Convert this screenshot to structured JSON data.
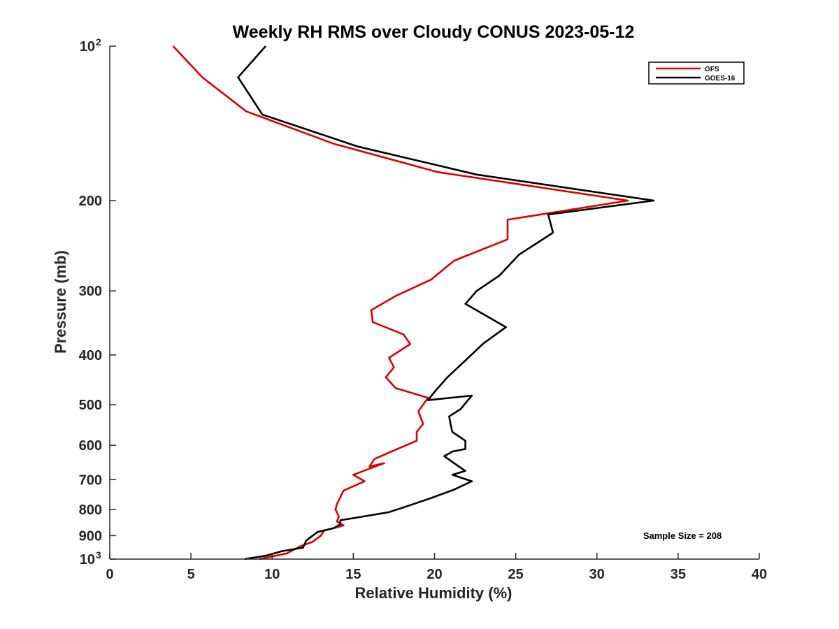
{
  "chart_data": {
    "type": "line",
    "title": "Weekly RH RMS over Cloudy CONUS 2023-05-12",
    "xlabel": "Relative Humidity (%)",
    "ylabel": "Pressure (mb)",
    "xlim": [
      0,
      40
    ],
    "ylim": [
      100,
      1000
    ],
    "yscale": "log",
    "y_reversed": true,
    "xticks": [
      0,
      5,
      10,
      15,
      20,
      25,
      30,
      35,
      40
    ],
    "xtick_labels": [
      "0",
      "5",
      "10",
      "15",
      "20",
      "25",
      "30",
      "35",
      "40"
    ],
    "yticks": [
      {
        "value": 100,
        "base": "10",
        "exp": "2"
      },
      {
        "value": 200,
        "base": "200",
        "exp": ""
      },
      {
        "value": 300,
        "base": "300",
        "exp": ""
      },
      {
        "value": 400,
        "base": "400",
        "exp": ""
      },
      {
        "value": 500,
        "base": "500",
        "exp": ""
      },
      {
        "value": 600,
        "base": "600",
        "exp": ""
      },
      {
        "value": 700,
        "base": "700",
        "exp": ""
      },
      {
        "value": 800,
        "base": "800",
        "exp": ""
      },
      {
        "value": 900,
        "base": "900",
        "exp": ""
      },
      {
        "value": 1000,
        "base": "10",
        "exp": "3"
      }
    ],
    "grid": false,
    "legend_position": "top-right",
    "annotation": "Sample Size = 208",
    "series": [
      {
        "name": "GFS",
        "color": "#dd0000",
        "x": [
          3.9,
          5.7,
          8.4,
          13.8,
          20.2,
          31.9,
          24.5,
          24.5,
          21.2,
          19.8,
          17.6,
          16.1,
          16.2,
          18.1,
          18.5,
          17.2,
          17.5,
          17.0,
          17.6,
          19.6,
          19.0,
          19.3,
          18.9,
          18.9,
          17.6,
          16.3,
          16.0,
          16.9,
          15.0,
          15.7,
          14.4,
          14.0,
          13.9,
          14.1,
          14.0,
          14.4,
          13.2,
          13.0,
          12.5,
          11.7,
          10.9,
          9.2
        ],
        "y": [
          100,
          115,
          134,
          155,
          176,
          200,
          218,
          238,
          262,
          285,
          307,
          327,
          345,
          365,
          381,
          405,
          423,
          442,
          464,
          485,
          515,
          545,
          565,
          588,
          612,
          638,
          660,
          650,
          685,
          705,
          735,
          780,
          800,
          825,
          845,
          860,
          880,
          900,
          925,
          945,
          975,
          1000
        ]
      },
      {
        "name": "GOES-16",
        "color": "#000000",
        "x": [
          9.6,
          7.9,
          9.4,
          15.3,
          22.6,
          33.5,
          27.0,
          27.3,
          25.2,
          24.0,
          22.6,
          21.9,
          24.4,
          23.0,
          21.9,
          20.8,
          20.0,
          19.6,
          22.3,
          21.6,
          20.9,
          21.0,
          21.1,
          21.9,
          21.9,
          21.1,
          20.6,
          21.2,
          21.9,
          21.1,
          22.3,
          21.2,
          19.8,
          18.5,
          17.2,
          15.2,
          14.2,
          14.2,
          13.8,
          12.8,
          12.4,
          12.1,
          11.9,
          10.6,
          9.6,
          8.3
        ],
        "y": [
          100,
          115,
          136,
          157,
          178,
          200,
          213,
          231,
          255,
          280,
          300,
          318,
          353,
          380,
          410,
          442,
          472,
          490,
          480,
          510,
          527,
          548,
          565,
          588,
          610,
          617,
          630,
          650,
          673,
          685,
          705,
          732,
          760,
          785,
          810,
          830,
          840,
          855,
          870,
          885,
          905,
          920,
          950,
          965,
          985,
          1000
        ]
      }
    ]
  }
}
